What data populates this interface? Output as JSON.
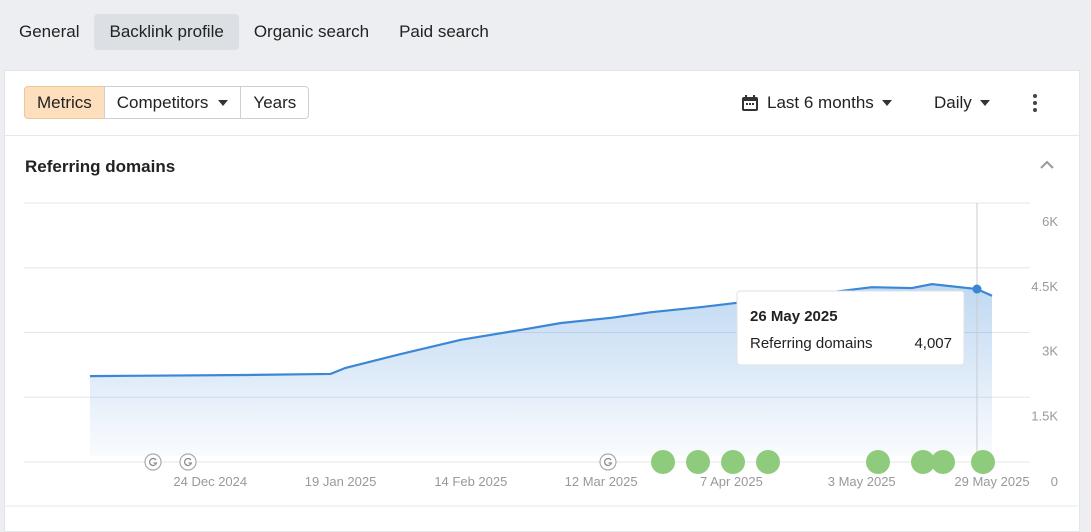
{
  "tabs": [
    {
      "label": "General",
      "active": false
    },
    {
      "label": "Backlink profile",
      "active": true
    },
    {
      "label": "Organic search",
      "active": false
    },
    {
      "label": "Paid search",
      "active": false
    }
  ],
  "toolbar": {
    "buttons": [
      {
        "label": "Metrics",
        "active": true,
        "dropdown": false
      },
      {
        "label": "Competitors",
        "active": false,
        "dropdown": true
      },
      {
        "label": "Years",
        "active": false,
        "dropdown": false
      }
    ],
    "period": "Last 6 months",
    "interval": "Daily"
  },
  "chart_data": {
    "type": "area",
    "title": "Referring domains",
    "x": [
      "2024-11-30",
      "2024-12-12",
      "2024-12-31",
      "2025-01-17",
      "2025-01-20",
      "2025-01-31",
      "2025-02-12",
      "2025-02-24",
      "2025-03-04",
      "2025-03-14",
      "2025-03-22",
      "2025-04-01",
      "2025-04-09",
      "2025-04-21",
      "2025-05-05",
      "2025-05-13",
      "2025-05-17",
      "2025-05-26",
      "2025-05-29"
    ],
    "series": [
      {
        "name": "Referring domains",
        "color": "#3b87d6",
        "values": [
          1990,
          2000,
          2015,
          2040,
          2180,
          2500,
          2830,
          3060,
          3220,
          3340,
          3470,
          3590,
          3700,
          3850,
          4050,
          4030,
          4120,
          4007,
          3850
        ]
      }
    ],
    "xlim": [
      "2024-11-30",
      "2025-05-29"
    ],
    "xticks": [
      {
        "value": "2024-12-24",
        "label": "24 Dec 2024"
      },
      {
        "value": "2025-01-19",
        "label": "19 Jan 2025"
      },
      {
        "value": "2025-02-14",
        "label": "14 Feb 2025"
      },
      {
        "value": "2025-03-12",
        "label": "12 Mar 2025"
      },
      {
        "value": "2025-04-07",
        "label": "7 Apr 2025"
      },
      {
        "value": "2025-05-03",
        "label": "3 May 2025"
      },
      {
        "value": "2025-05-29",
        "label": "29 May 2025"
      }
    ],
    "ylim": [
      0,
      6000
    ],
    "yticks": [
      0,
      {
        "value": 1500,
        "label": "1.5K"
      },
      {
        "value": 3000,
        "label": "3K"
      },
      {
        "value": 4500,
        "label": "4.5K"
      },
      {
        "value": 6000,
        "label": "6K"
      }
    ],
    "grid": true,
    "tooltip": {
      "date": "26 May 2025",
      "value": 4007,
      "value_label": "4,007"
    }
  }
}
